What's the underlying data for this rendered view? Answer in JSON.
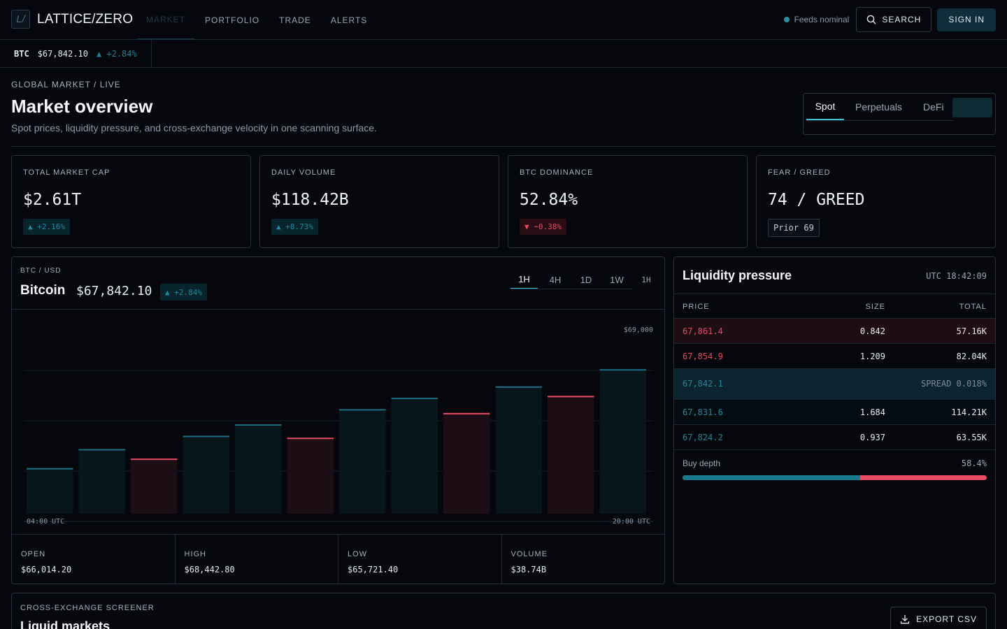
{
  "brand": {
    "name": "LATTICE/ZERO",
    "mark": "L/"
  },
  "nav": [
    {
      "label": "MARKET",
      "active": true
    },
    {
      "label": "PORTFOLIO"
    },
    {
      "label": "TRADE"
    },
    {
      "label": "ALERTS"
    }
  ],
  "status": {
    "feed": "Feeds nominal"
  },
  "actions": {
    "search": "SEARCH",
    "signin": "SIGN IN"
  },
  "ticker": {
    "symbol": "BTC",
    "price": "$67,842.10",
    "change": "▲ +2.84%"
  },
  "header": {
    "crumb": "GLOBAL MARKET / LIVE",
    "title": "Market overview",
    "subtitle": "Spot prices, liquidity pressure, and cross-exchange velocity in one scanning surface.",
    "segments": [
      "Spot",
      "Perpetuals",
      "DeFi"
    ]
  },
  "stats": [
    {
      "label": "TOTAL MARKET CAP",
      "value": "$2.61T",
      "badge": "▲ +2.16%",
      "tone": "up"
    },
    {
      "label": "DAILY VOLUME",
      "value": "$118.42B",
      "badge": "▲ +8.73%",
      "tone": "up"
    },
    {
      "label": "BTC DOMINANCE",
      "value": "52.84%",
      "badge": "▼ −0.38%",
      "tone": "down"
    },
    {
      "label": "FEAR / GREED",
      "value": "74 / GREED",
      "badge": "Prior 69",
      "tone": "neutral"
    }
  ],
  "chart": {
    "pair": "BTC / USD",
    "name": "Bitcoin",
    "price": "$67,842.10",
    "change": "▲ +2.84%",
    "timeframes": [
      "1H",
      "4H",
      "1D",
      "1W",
      "1H"
    ],
    "ohlc": [
      {
        "label": "OPEN",
        "value": "$66,014.20"
      },
      {
        "label": "HIGH",
        "value": "$68,442.80"
      },
      {
        "label": "LOW",
        "value": "$65,721.40"
      },
      {
        "label": "VOLUME",
        "value": "$38.74B"
      }
    ]
  },
  "chart_data": {
    "type": "bar",
    "title": "",
    "y_max_label": "$69,000",
    "x_start_label": "04:00 UTC",
    "x_end_label": "20:00 UTC",
    "values": [
      0.24,
      0.34,
      0.29,
      0.41,
      0.47,
      0.4,
      0.55,
      0.61,
      0.53,
      0.67,
      0.62,
      0.76
    ],
    "directions": [
      "up",
      "up",
      "down",
      "up",
      "up",
      "down",
      "up",
      "up",
      "down",
      "up",
      "down",
      "up"
    ],
    "colors": {
      "up": "#1f6f84",
      "down": "#e84a64",
      "up_fill": "#08151b",
      "down_fill": "#1c0e14"
    }
  },
  "liquidity": {
    "title": "Liquidity pressure",
    "time": "UTC 18:42:09",
    "columns": [
      "PRICE",
      "SIZE",
      "TOTAL"
    ],
    "asks": [
      {
        "price": "67,861.4",
        "size": "0.842",
        "total": "57.16K"
      },
      {
        "price": "67,854.9",
        "size": "1.209",
        "total": "82.04K"
      }
    ],
    "mid": {
      "price": "67,842.1",
      "spread": "SPREAD 0.018%"
    },
    "bids": [
      {
        "price": "67,831.6",
        "size": "1.684",
        "total": "114.21K"
      },
      {
        "price": "67,824.2",
        "size": "0.937",
        "total": "63.55K"
      }
    ],
    "depth": {
      "label": "Buy depth",
      "value": "58.4%",
      "fraction": 0.584
    }
  },
  "screener": {
    "label": "CROSS-EXCHANGE SCREENER",
    "title": "Liquid markets",
    "export": "EXPORT CSV"
  }
}
